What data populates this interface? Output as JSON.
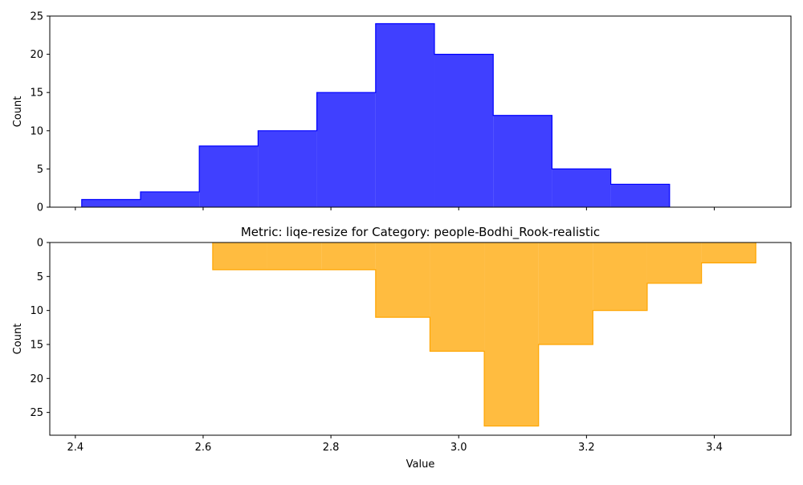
{
  "chart_data": [
    {
      "type": "histogram",
      "title": "",
      "xlabel": "",
      "ylabel": "Count",
      "xlim": [
        2.36,
        3.52
      ],
      "ylim": [
        0,
        25
      ],
      "y_inverted": false,
      "xticks": [
        2.4,
        2.6,
        2.8,
        3.0,
        3.2,
        3.4
      ],
      "xtick_labels_visible": false,
      "yticks": [
        0,
        5,
        10,
        15,
        20,
        25
      ],
      "color": "#0000ff",
      "bins": [
        {
          "start": 2.41,
          "end": 2.502,
          "count": 1
        },
        {
          "start": 2.502,
          "end": 2.594,
          "count": 2
        },
        {
          "start": 2.594,
          "end": 2.686,
          "count": 8
        },
        {
          "start": 2.686,
          "end": 2.778,
          "count": 10
        },
        {
          "start": 2.778,
          "end": 2.87,
          "count": 15
        },
        {
          "start": 2.87,
          "end": 2.962,
          "count": 24
        },
        {
          "start": 2.962,
          "end": 3.054,
          "count": 20
        },
        {
          "start": 3.054,
          "end": 3.146,
          "count": 12
        },
        {
          "start": 3.146,
          "end": 3.238,
          "count": 5
        },
        {
          "start": 3.238,
          "end": 3.33,
          "count": 3
        }
      ]
    },
    {
      "type": "histogram",
      "title": "Metric: liqe-resize for Category: people-Bodhi_Rook-realistic",
      "xlabel": "Value",
      "ylabel": "Count",
      "xlim": [
        2.36,
        3.52
      ],
      "ylim": [
        0,
        28.35
      ],
      "y_inverted": true,
      "xticks": [
        2.4,
        2.6,
        2.8,
        3.0,
        3.2,
        3.4
      ],
      "xtick_labels_visible": true,
      "yticks": [
        0,
        5,
        10,
        15,
        20,
        25
      ],
      "color": "#ffa500",
      "bins": [
        {
          "start": 2.615,
          "end": 2.7,
          "count": 4
        },
        {
          "start": 2.7,
          "end": 2.785,
          "count": 4
        },
        {
          "start": 2.785,
          "end": 2.87,
          "count": 4
        },
        {
          "start": 2.87,
          "end": 2.955,
          "count": 11
        },
        {
          "start": 2.955,
          "end": 3.04,
          "count": 16
        },
        {
          "start": 3.04,
          "end": 3.125,
          "count": 27
        },
        {
          "start": 3.125,
          "end": 3.21,
          "count": 15
        },
        {
          "start": 3.21,
          "end": 3.295,
          "count": 10
        },
        {
          "start": 3.295,
          "end": 3.38,
          "count": 6
        },
        {
          "start": 3.38,
          "end": 3.465,
          "count": 3
        }
      ]
    }
  ]
}
